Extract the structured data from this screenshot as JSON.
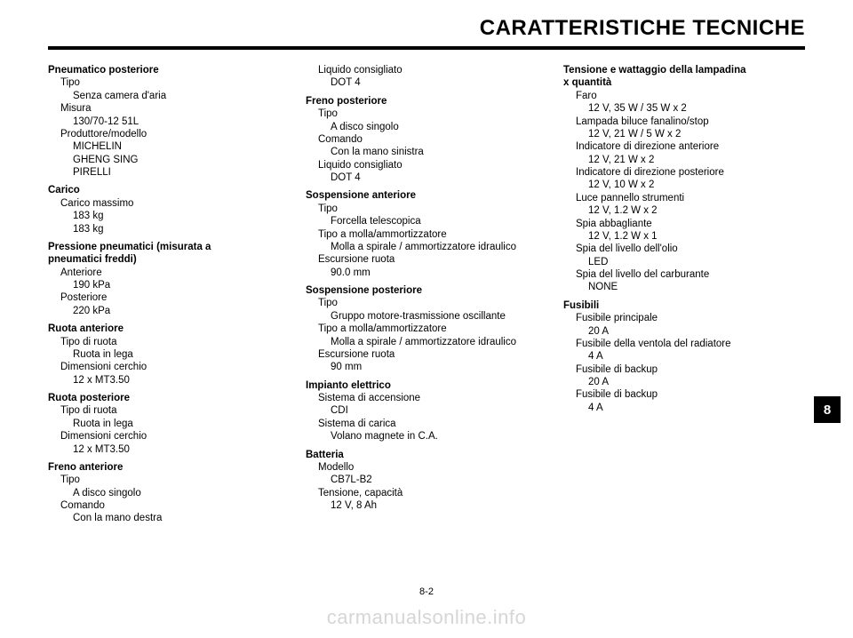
{
  "header": {
    "title": "CARATTERISTICHE TECNICHE"
  },
  "side_tab": "8",
  "page_number": "8-2",
  "watermark": "carmanualsonline.info",
  "col1": {
    "s1": {
      "title": "Pneumatico posteriore",
      "r1_label": "Tipo",
      "r1_value": "Senza camera d'aria",
      "r2_label": "Misura",
      "r2_value": "130/70-12 51L",
      "r3_label": "Produttore/modello",
      "r3_v1": "MICHELIN",
      "r3_v2": "GHENG SING",
      "r3_v3": "PIRELLI"
    },
    "s2": {
      "title": "Carico",
      "r1_label": "Carico massimo",
      "r1_v1": "183 kg",
      "r1_v2": "183 kg"
    },
    "s3": {
      "title1": "Pressione pneumatici (misurata a",
      "title2": "pneumatici freddi)",
      "r1_label": "Anteriore",
      "r1_value": "190 kPa",
      "r2_label": "Posteriore",
      "r2_value": "220 kPa"
    },
    "s4": {
      "title": "Ruota anteriore",
      "r1_label": "Tipo di ruota",
      "r1_value": "Ruota in lega",
      "r2_label": "Dimensioni cerchio",
      "r2_value": "12 x MT3.50"
    },
    "s5": {
      "title": "Ruota posteriore",
      "r1_label": "Tipo di ruota",
      "r1_value": "Ruota in lega",
      "r2_label": "Dimensioni cerchio",
      "r2_value": "12 x MT3.50"
    },
    "s6": {
      "title": "Freno anteriore",
      "r1_label": "Tipo",
      "r1_value": "A disco singolo",
      "r2_label": "Comando",
      "r2_value": "Con la mano destra"
    }
  },
  "col2": {
    "top": {
      "r1_label": "Liquido consigliato",
      "r1_value": "DOT 4"
    },
    "s1": {
      "title": "Freno posteriore",
      "r1_label": "Tipo",
      "r1_value": "A disco singolo",
      "r2_label": "Comando",
      "r2_value": "Con la mano sinistra",
      "r3_label": "Liquido consigliato",
      "r3_value": "DOT 4"
    },
    "s2": {
      "title": "Sospensione anteriore",
      "r1_label": "Tipo",
      "r1_value": "Forcella telescopica",
      "r2_label": "Tipo a molla/ammortizzatore",
      "r2_value": "Molla a spirale / ammortizzatore idraulico",
      "r3_label": "Escursione ruota",
      "r3_value": "90.0 mm"
    },
    "s3": {
      "title": "Sospensione posteriore",
      "r1_label": "Tipo",
      "r1_value": "Gruppo motore-trasmissione oscillante",
      "r2_label": "Tipo a molla/ammortizzatore",
      "r2_value": "Molla a spirale / ammortizzatore idraulico",
      "r3_label": "Escursione ruota",
      "r3_value": "90 mm"
    },
    "s4": {
      "title": "Impianto elettrico",
      "r1_label": "Sistema di accensione",
      "r1_value": "CDI",
      "r2_label": "Sistema di carica",
      "r2_value": "Volano magnete in C.A."
    },
    "s5": {
      "title": "Batteria",
      "r1_label": "Modello",
      "r1_value": "CB7L-B2",
      "r2_label": "Tensione, capacità",
      "r2_value": "12 V, 8 Ah"
    }
  },
  "col3": {
    "s1": {
      "title1": "Tensione e wattaggio della lampadina",
      "title2": "x quantità",
      "r1_label": "Faro",
      "r1_value": "12 V, 35 W / 35 W x 2",
      "r2_label": "Lampada biluce fanalino/stop",
      "r2_value": "12 V, 21 W / 5 W x 2",
      "r3_label": "Indicatore di direzione anteriore",
      "r3_value": "12 V, 21 W x 2",
      "r4_label": "Indicatore di direzione posteriore",
      "r4_value": "12 V, 10 W x 2",
      "r5_label": "Luce pannello strumenti",
      "r5_value": "12 V, 1.2 W x 2",
      "r6_label": "Spia abbagliante",
      "r6_value": "12 V, 1.2 W x 1",
      "r7_label": "Spia del livello dell'olio",
      "r7_value": "LED",
      "r8_label": "Spia del livello del carburante",
      "r8_value": "NONE"
    },
    "s2": {
      "title": "Fusibili",
      "r1_label": "Fusibile principale",
      "r1_value": "20 A",
      "r2_label": "Fusibile della ventola del radiatore",
      "r2_value": "4 A",
      "r3_label": "Fusibile di backup",
      "r3_value": "20 A",
      "r4_label": "Fusibile di backup",
      "r4_value": "4 A"
    }
  }
}
